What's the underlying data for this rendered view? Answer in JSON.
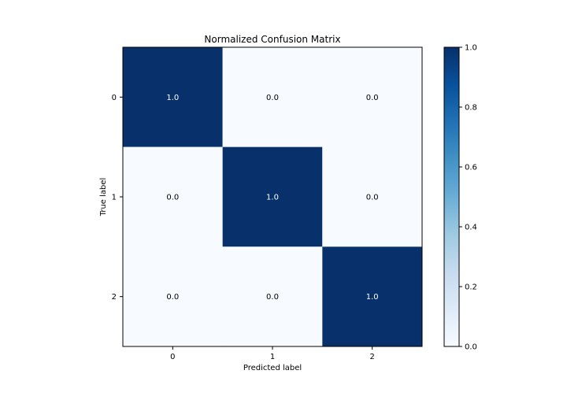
{
  "chart_data": {
    "type": "heatmap",
    "title": "Normalized Confusion Matrix",
    "xlabel": "Predicted label",
    "ylabel": "True label",
    "x_categories": [
      "0",
      "1",
      "2"
    ],
    "y_categories": [
      "0",
      "1",
      "2"
    ],
    "values": [
      [
        1.0,
        0.0,
        0.0
      ],
      [
        0.0,
        1.0,
        0.0
      ],
      [
        0.0,
        0.0,
        1.0
      ]
    ],
    "cell_labels": [
      [
        "1.0",
        "0.0",
        "0.0"
      ],
      [
        "0.0",
        "1.0",
        "0.0"
      ],
      [
        "0.0",
        "0.0",
        "1.0"
      ]
    ],
    "colormap": "Blues",
    "color_low": "#f7fbff",
    "color_high": "#08306b",
    "colorbar": {
      "range": [
        0.0,
        1.0
      ],
      "ticks": [
        "0.0",
        "0.2",
        "0.4",
        "0.6",
        "0.8",
        "1.0"
      ]
    },
    "grid": false
  }
}
